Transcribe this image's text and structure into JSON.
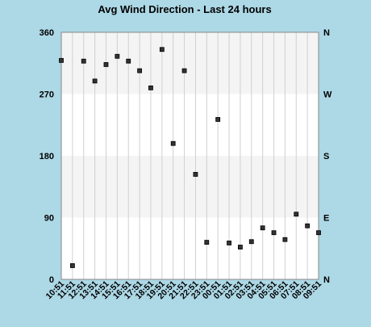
{
  "colors": {
    "page_background": "#add8e6",
    "plot_band_light": "#f4f4f4",
    "plot_band_white": "#ffffff",
    "grid": "#d0d0d0",
    "marker_fill": "#333333",
    "marker_stroke": "#000000",
    "text": "#000000"
  },
  "chart_data": {
    "type": "scatter",
    "title": "Avg Wind Direction - Last 24 hours",
    "xlabel": "",
    "ylabel": "",
    "ylim": [
      0,
      360
    ],
    "y_ticks": [
      "0",
      "90",
      "180",
      "270",
      "360"
    ],
    "y_tick_values": [
      0,
      90,
      180,
      270,
      360
    ],
    "right_axis_labels": [
      {
        "value": 0,
        "label": "N"
      },
      {
        "value": 90,
        "label": "E"
      },
      {
        "value": 180,
        "label": "S"
      },
      {
        "value": 270,
        "label": "W"
      },
      {
        "value": 360,
        "label": "N"
      }
    ],
    "bands": [
      {
        "from": 0,
        "to": 90,
        "shade": "white"
      },
      {
        "from": 90,
        "to": 180,
        "shade": "light"
      },
      {
        "from": 180,
        "to": 270,
        "shade": "white"
      },
      {
        "from": 270,
        "to": 360,
        "shade": "light"
      }
    ],
    "grid": true,
    "legend": "none",
    "x": [
      "10:51",
      "11:51",
      "12:51",
      "13:51",
      "14:51",
      "15:51",
      "16:51",
      "17:51",
      "18:51",
      "19:51",
      "20:51",
      "21:51",
      "22:51",
      "23:51",
      "00:51",
      "01:51",
      "02:51",
      "03:51",
      "04:51",
      "05:51",
      "06:51",
      "07:51",
      "08:51",
      "09:51"
    ],
    "values": [
      319,
      20,
      318,
      289,
      313,
      325,
      318,
      304,
      279,
      335,
      198,
      304,
      153,
      54,
      233,
      53,
      47,
      55,
      75,
      68,
      58,
      95,
      78,
      68
    ]
  }
}
